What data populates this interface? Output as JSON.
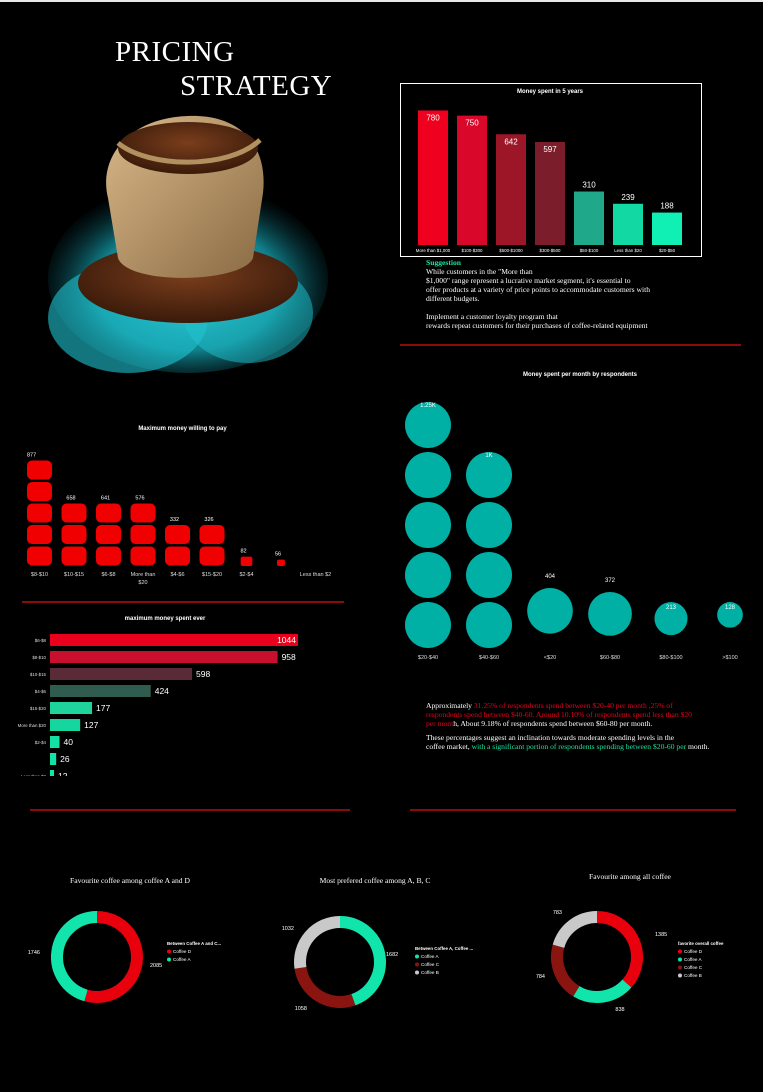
{
  "page": {
    "title_line1": "PRICING",
    "title_line2": "STRATEGY"
  },
  "colors": {
    "red": "#e8001c",
    "teal": "#00b0a4",
    "mint": "#12e5ab",
    "gray": "#c9c9c9",
    "maroon": "#8a1510",
    "divider": "#8b0a0a"
  },
  "hero": {
    "icon": "coffee-bean-sack-icon"
  },
  "suggestion": {
    "heading": "Suggestion",
    "lines": [
      "While customers in the \"More than",
      "$1,000\" range represent a lucrative market segment, it's essential to",
      "offer products at a variety of price points to accommodate customers with",
      "different budgets.",
      "",
      "Implement a customer loyalty program that",
      "rewards repeat customers for their purchases of coffee-related equipment"
    ]
  },
  "analysis": {
    "p1_a": "Approximately ",
    "p1_red1": "31.25% of respondents spend between $20-40 per month ,25% of",
    "p1_red2": "respondents spend between $40-60. Around 10.10% of respondents spend less than $20",
    "p1_red3": "per mont",
    "p1_b": "h, About 9.18% of respondents spend between $60-80 per month.",
    "p2_a1": "These percentages suggest an inclination towards moderate spending levels in the",
    "p2_a2": " coffee market,",
    "p2_green": " with a significant portion of respondents spending between $20-60 per",
    "p2_b": " month."
  },
  "chart_data": [
    {
      "id": "money-5-years",
      "type": "bar",
      "title": "Money spent in 5 years",
      "categories": [
        "More than $1,000",
        "$100-$300",
        "$500-$1000",
        "$300-$500",
        "$50-$100",
        "Less than $20",
        "$20-$50"
      ],
      "values": [
        780,
        750,
        642,
        597,
        310,
        239,
        188
      ],
      "bar_colors": [
        "#f0001f",
        "#d9082a",
        "#9c1628",
        "#7b1d2a",
        "#1fa88a",
        "#12d8a4",
        "#10f0b4"
      ],
      "ylim": [
        0,
        800
      ]
    },
    {
      "id": "willing-to-pay",
      "type": "bar",
      "title": "Maximum money willing to pay",
      "categories": [
        "$8-$10",
        "$10-$15",
        "$6-$8",
        "More than $20",
        "$4-$6",
        "$15-$20",
        "$2-$4",
        "",
        "Less than $2"
      ],
      "category_lines": [
        [
          "$8-$10"
        ],
        [
          "$10-$15"
        ],
        [
          "$6-$8"
        ],
        [
          "More than",
          "$20"
        ],
        [
          "$4-$6"
        ],
        [
          "$15-$20"
        ],
        [
          "$2-$4"
        ],
        [
          ""
        ],
        [
          "Less than $2"
        ]
      ],
      "values": [
        877,
        658,
        641,
        576,
        332,
        326,
        82,
        56,
        0
      ],
      "labels": [
        "877",
        "658",
        "641",
        "576",
        "332",
        "326",
        "82",
        "56",
        ""
      ],
      "ylim": [
        0,
        877
      ]
    },
    {
      "id": "monthly-spend",
      "type": "scatter",
      "title": "Money spent per month by respondents",
      "categories": [
        "$20-$40",
        "$40-$60",
        "<$20",
        "$60-$80",
        "$80-$100",
        ">$100"
      ],
      "values": [
        1250,
        1000,
        404,
        372,
        213,
        128
      ],
      "labels": [
        "1.25K",
        "1K",
        "404",
        "372",
        "213",
        "128"
      ]
    },
    {
      "id": "max-spent-ever",
      "type": "bar",
      "orientation": "horizontal",
      "title": "maximum money spent ever",
      "categories": [
        "$6-$8",
        "$8-$10",
        "$10-$15",
        "$4-$6",
        "$15-$20",
        "More than $20",
        "$2-$4",
        "",
        "Less than $2"
      ],
      "values": [
        1044,
        958,
        598,
        424,
        177,
        127,
        40,
        26,
        12
      ],
      "bar_colors": [
        "#e8001c",
        "#c8102e",
        "#5a2a36",
        "#2f5c4e",
        "#1fd39c",
        "#16d6a0",
        "#14e0a6",
        "#12e4a8",
        "#10e8aa"
      ],
      "xlim": [
        0,
        1044
      ]
    },
    {
      "id": "fav-a-d",
      "type": "pie",
      "title": "Favourite coffee among coffee A and D",
      "legend_title": "Between Coffee A and C...",
      "slices": [
        {
          "label": "Coffee D",
          "value": 2085,
          "color": "#e8000d"
        },
        {
          "label": "Coffee A",
          "value": 1746,
          "color": "#12e5ab"
        }
      ]
    },
    {
      "id": "pref-abc",
      "type": "pie",
      "title": "Most prefered coffee among A, B, C",
      "legend_title": "Between Coffee A, Coffee ...",
      "slices": [
        {
          "label": "Coffee A",
          "value": 1682,
          "color": "#12e5ab"
        },
        {
          "label": "Coffee C",
          "value": 1058,
          "color": "#8a1510"
        },
        {
          "label": "Coffee B",
          "value": 1032,
          "color": "#c9c9c9"
        }
      ]
    },
    {
      "id": "fav-all",
      "type": "pie",
      "title": "Favourite among all coffee",
      "legend_title": "favorite overall coffee",
      "slices": [
        {
          "label": "Coffee D",
          "value": 1385,
          "color": "#e8000d"
        },
        {
          "label": "Coffee A",
          "value": 838,
          "color": "#12e5ab"
        },
        {
          "label": "Coffee C",
          "value": 784,
          "color": "#8a1510"
        },
        {
          "label": "Coffee B",
          "value": 783,
          "color": "#c9c9c9"
        }
      ]
    }
  ]
}
